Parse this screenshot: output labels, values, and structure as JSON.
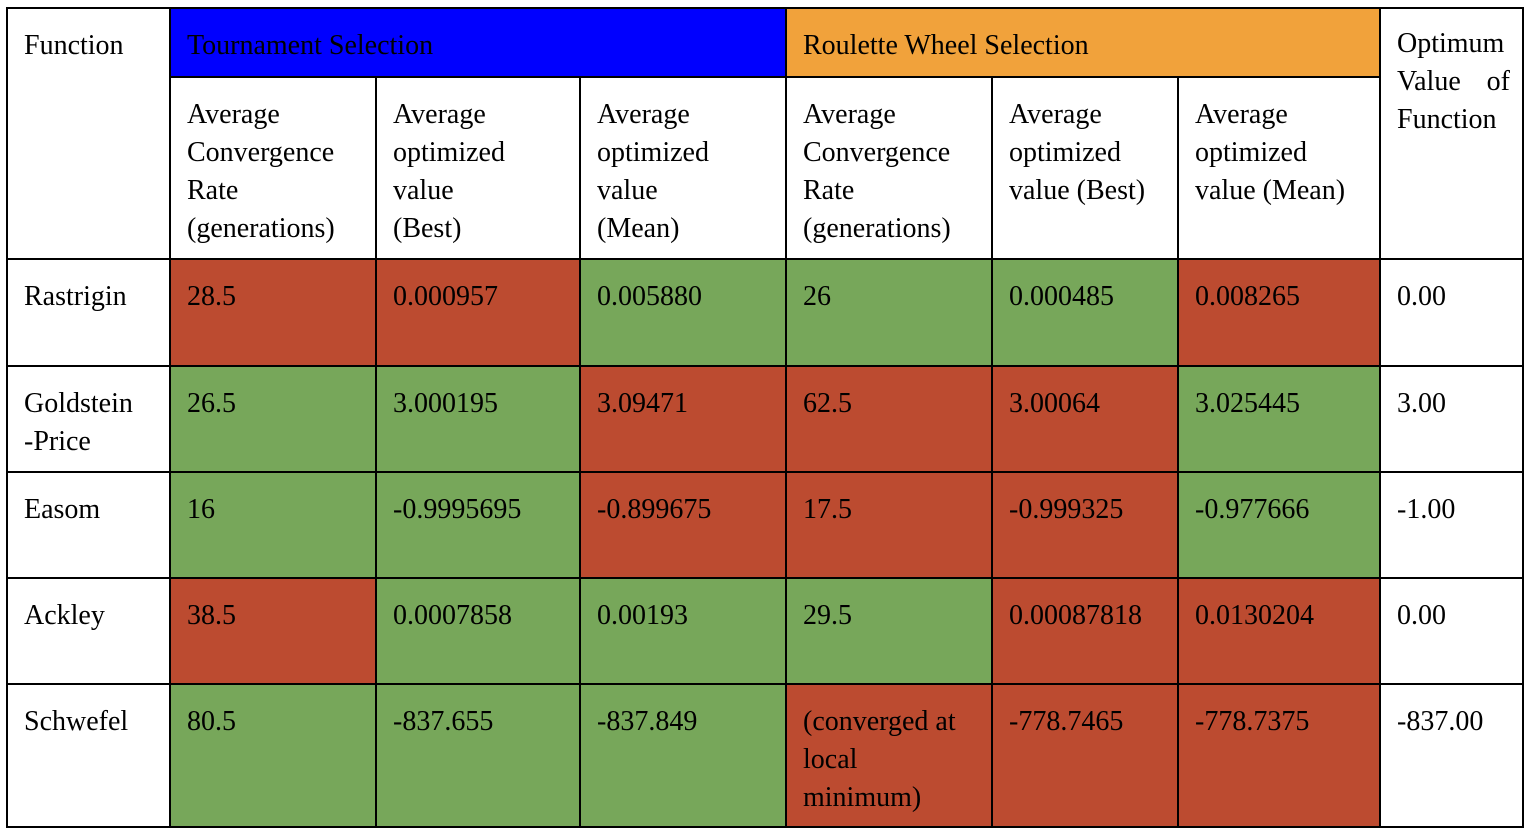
{
  "colors": {
    "tournament_header": "#0000ff",
    "roulette_header": "#f1a23b",
    "worse": "#bc4b30",
    "better": "#77a75a"
  },
  "header": {
    "function": "Function",
    "tournament": "Tournament Selection",
    "roulette": "Roulette Wheel Selection",
    "optimum_line1": "Optimum",
    "optimum_line2": "Value of",
    "optimum_line3": "Function",
    "sub": {
      "t_conv": [
        "Average",
        "Convergence",
        "Rate",
        "(generations)"
      ],
      "t_best": [
        "Average",
        "optimized",
        "value",
        "(Best)"
      ],
      "t_mean": [
        "Average",
        "optimized",
        "value",
        "(Mean)"
      ],
      "r_conv": [
        "Average",
        "Convergence",
        "Rate",
        "(generations)"
      ],
      "r_best": [
        "Average",
        "optimized",
        "value (Best)"
      ],
      "r_mean": [
        "Average",
        "optimized",
        "value (Mean)"
      ]
    }
  },
  "rows": [
    {
      "function": [
        "Rastrigin"
      ],
      "t_conv": [
        "28.5"
      ],
      "t_best": [
        "0.000957"
      ],
      "t_mean": [
        "0.005880"
      ],
      "r_conv": [
        "26"
      ],
      "r_best": [
        "0.000485"
      ],
      "r_mean": [
        "0.008265"
      ],
      "optimum": "0.00",
      "colors": [
        "red",
        "red",
        "green",
        "green",
        "green",
        "red"
      ]
    },
    {
      "function": [
        "Goldstein",
        "-Price"
      ],
      "t_conv": [
        "26.5"
      ],
      "t_best": [
        "3.000195"
      ],
      "t_mean": [
        "3.09471"
      ],
      "r_conv": [
        "62.5"
      ],
      "r_best": [
        "3.00064"
      ],
      "r_mean": [
        "3.025445"
      ],
      "optimum": "3.00",
      "colors": [
        "green",
        "green",
        "red",
        "red",
        "red",
        "green"
      ]
    },
    {
      "function": [
        "Easom"
      ],
      "t_conv": [
        "16"
      ],
      "t_best": [
        "-0.9995695"
      ],
      "t_mean": [
        "-0.899675"
      ],
      "r_conv": [
        "17.5"
      ],
      "r_best": [
        "-0.999325"
      ],
      "r_mean": [
        "-0.977666"
      ],
      "optimum": "-1.00",
      "colors": [
        "green",
        "green",
        "red",
        "red",
        "red",
        "green"
      ]
    },
    {
      "function": [
        "Ackley"
      ],
      "t_conv": [
        "38.5"
      ],
      "t_best": [
        "0.0007858"
      ],
      "t_mean": [
        "0.00193"
      ],
      "r_conv": [
        "29.5"
      ],
      "r_best": [
        "0.00087818"
      ],
      "r_mean": [
        "0.0130204"
      ],
      "optimum": "0.00",
      "colors": [
        "red",
        "green",
        "green",
        "green",
        "red",
        "red"
      ]
    },
    {
      "function": [
        "Schwefel"
      ],
      "t_conv": [
        "80.5"
      ],
      "t_best": [
        "-837.655"
      ],
      "t_mean": [
        "-837.849"
      ],
      "r_conv": [
        "(converged at",
        "local",
        "minimum)"
      ],
      "r_best": [
        "-778.7465"
      ],
      "r_mean": [
        "-778.7375"
      ],
      "optimum": "-837.00",
      "colors": [
        "green",
        "green",
        "green",
        "red",
        "red",
        "red"
      ]
    }
  ]
}
